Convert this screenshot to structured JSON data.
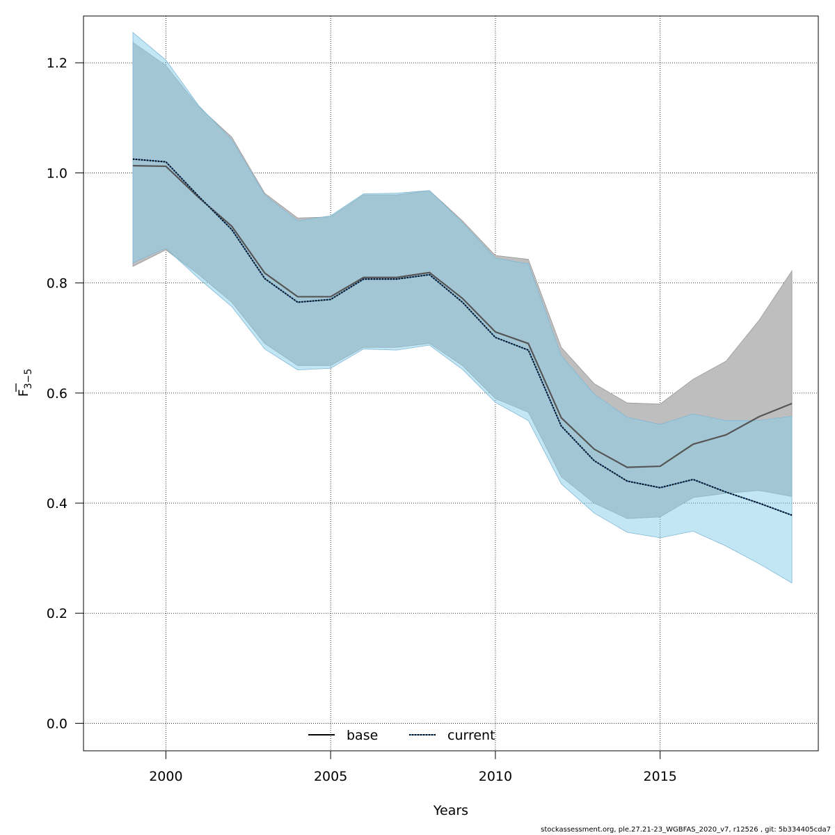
{
  "chart_data": {
    "type": "area",
    "title": "",
    "xlabel": "Years",
    "ylabel_main": "F",
    "ylabel_sub": "3−5",
    "xlim": [
      1997.5,
      2019.8
    ],
    "ylim": [
      -0.05,
      1.285
    ],
    "x_ticks": [
      2000,
      2005,
      2010,
      2015
    ],
    "y_ticks": [
      0.0,
      0.2,
      0.4,
      0.6,
      0.8,
      1.0,
      1.2
    ],
    "y_tick_labels": [
      "0.0",
      "0.2",
      "0.4",
      "0.6",
      "0.8",
      "1.0",
      "1.2"
    ],
    "grid": true,
    "legend_position": "bottom",
    "x": [
      1999,
      2000,
      2001,
      2002,
      2003,
      2004,
      2005,
      2006,
      2007,
      2008,
      2009,
      2010,
      2011,
      2012,
      2013,
      2014,
      2015,
      2016,
      2017,
      2018,
      2019
    ],
    "series": [
      {
        "name": "base",
        "line_style": "solid",
        "line_color": "#000000",
        "band_color": "#bebebe",
        "values": [
          1.013,
          1.012,
          0.955,
          0.903,
          0.818,
          0.775,
          0.775,
          0.81,
          0.81,
          0.819,
          0.772,
          0.711,
          0.69,
          0.555,
          0.498,
          0.465,
          0.467,
          0.507,
          0.524,
          0.557,
          0.581
        ],
        "lower": [
          0.83,
          0.86,
          0.815,
          0.765,
          0.69,
          0.65,
          0.65,
          0.683,
          0.683,
          0.69,
          0.65,
          0.59,
          0.565,
          0.448,
          0.4,
          0.372,
          0.375,
          0.41,
          0.418,
          0.423,
          0.412
        ],
        "upper": [
          1.237,
          1.195,
          1.12,
          1.065,
          0.963,
          0.918,
          0.92,
          0.96,
          0.96,
          0.968,
          0.913,
          0.85,
          0.843,
          0.683,
          0.617,
          0.582,
          0.58,
          0.625,
          0.658,
          0.732,
          0.822
        ]
      },
      {
        "name": "current",
        "line_style": "dotted",
        "line_color": "#000000",
        "band_color": "#87ceeb",
        "values": [
          1.025,
          1.02,
          0.957,
          0.897,
          0.808,
          0.765,
          0.77,
          0.807,
          0.807,
          0.815,
          0.765,
          0.701,
          0.678,
          0.54,
          0.477,
          0.44,
          0.428,
          0.443,
          0.42,
          0.4,
          0.378
        ],
        "lower": [
          0.837,
          0.863,
          0.808,
          0.757,
          0.68,
          0.642,
          0.645,
          0.68,
          0.678,
          0.687,
          0.643,
          0.583,
          0.55,
          0.435,
          0.382,
          0.347,
          0.337,
          0.349,
          0.322,
          0.29,
          0.255
        ],
        "upper": [
          1.255,
          1.205,
          1.122,
          1.06,
          0.96,
          0.913,
          0.922,
          0.962,
          0.963,
          0.968,
          0.91,
          0.845,
          0.835,
          0.668,
          0.598,
          0.556,
          0.543,
          0.562,
          0.55,
          0.55,
          0.558
        ]
      }
    ]
  },
  "footer_text": "stockassessment.org, ple.27.21-23_WGBFAS_2020_v7, r12526 , git: 5b334405cda7"
}
